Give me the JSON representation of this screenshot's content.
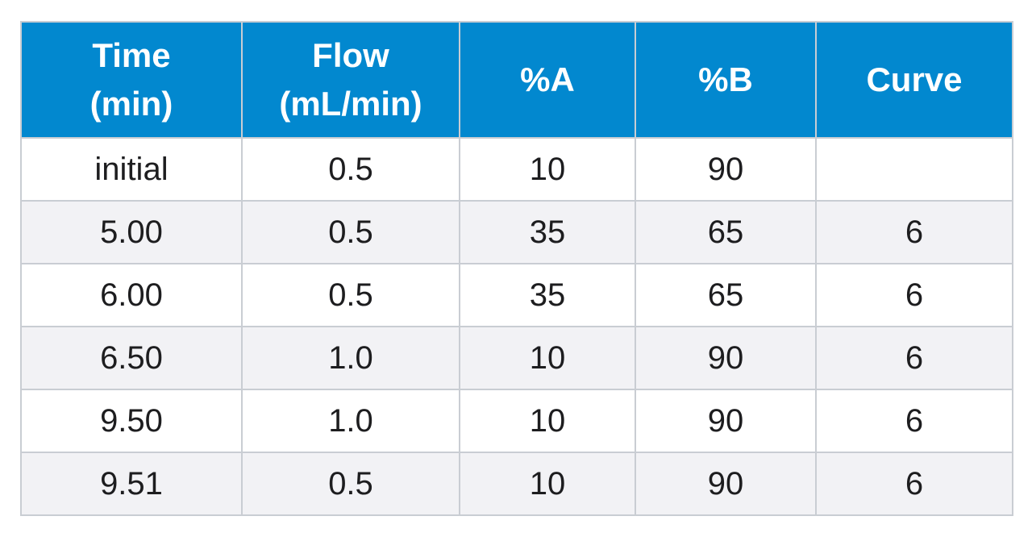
{
  "table": {
    "headers": [
      {
        "line1": "Time",
        "line2": "(min)"
      },
      {
        "line1": "Flow",
        "line2": "(mL/min)"
      },
      {
        "line1": "%A",
        "line2": ""
      },
      {
        "line1": "%B",
        "line2": ""
      },
      {
        "line1": "Curve",
        "line2": ""
      }
    ],
    "rows": [
      [
        "initial",
        "0.5",
        "10",
        "90",
        ""
      ],
      [
        "5.00",
        "0.5",
        "35",
        "65",
        "6"
      ],
      [
        "6.00",
        "0.5",
        "35",
        "65",
        "6"
      ],
      [
        "6.50",
        "1.0",
        "10",
        "90",
        "6"
      ],
      [
        "9.50",
        "1.0",
        "10",
        "90",
        "6"
      ],
      [
        "9.51",
        "0.5",
        "10",
        "90",
        "6"
      ]
    ]
  },
  "colors": {
    "header_bg": "#0288cf",
    "header_text": "#ffffff",
    "row_alt_bg": "#f2f2f5",
    "border": "#c9cdd3"
  }
}
